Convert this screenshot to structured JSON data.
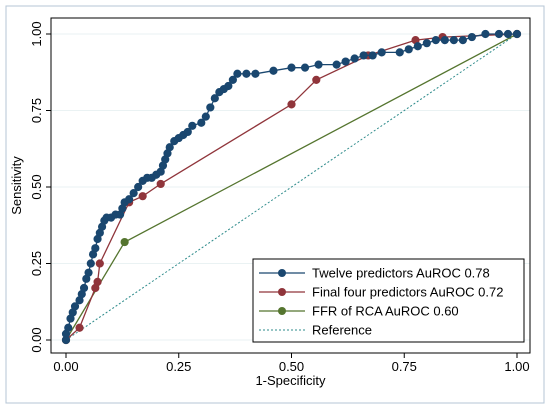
{
  "chart_data": {
    "type": "line",
    "title": "",
    "xlabel": "1-Specificity",
    "ylabel": "Sensitivity",
    "xlim": [
      0,
      1
    ],
    "ylim": [
      0,
      1
    ],
    "x_ticks": [
      "0.00",
      "0.25",
      "0.50",
      "0.75",
      "1.00"
    ],
    "y_ticks": [
      "0.00",
      "0.25",
      "0.50",
      "0.75",
      "1.00"
    ],
    "grid": "y-major",
    "legend_position": "bottom-right-inside",
    "series": [
      {
        "name": "Twelve predictors AuROC 0.78",
        "color": "#1a476f",
        "marker": "circle",
        "points": [
          [
            0,
            0
          ],
          [
            0,
            0.02
          ],
          [
            0.005,
            0.04
          ],
          [
            0.01,
            0.07
          ],
          [
            0.015,
            0.09
          ],
          [
            0.02,
            0.11
          ],
          [
            0.03,
            0.13
          ],
          [
            0.035,
            0.15
          ],
          [
            0.04,
            0.17
          ],
          [
            0.045,
            0.2
          ],
          [
            0.05,
            0.22
          ],
          [
            0.055,
            0.25
          ],
          [
            0.06,
            0.28
          ],
          [
            0.065,
            0.3
          ],
          [
            0.07,
            0.33
          ],
          [
            0.075,
            0.35
          ],
          [
            0.08,
            0.37
          ],
          [
            0.085,
            0.39
          ],
          [
            0.09,
            0.4
          ],
          [
            0.1,
            0.4
          ],
          [
            0.11,
            0.41
          ],
          [
            0.12,
            0.41
          ],
          [
            0.125,
            0.43
          ],
          [
            0.13,
            0.45
          ],
          [
            0.14,
            0.46
          ],
          [
            0.15,
            0.48
          ],
          [
            0.16,
            0.5
          ],
          [
            0.17,
            0.52
          ],
          [
            0.18,
            0.53
          ],
          [
            0.19,
            0.53
          ],
          [
            0.2,
            0.54
          ],
          [
            0.21,
            0.55
          ],
          [
            0.215,
            0.57
          ],
          [
            0.22,
            0.59
          ],
          [
            0.225,
            0.61
          ],
          [
            0.23,
            0.63
          ],
          [
            0.24,
            0.65
          ],
          [
            0.25,
            0.66
          ],
          [
            0.26,
            0.67
          ],
          [
            0.27,
            0.68
          ],
          [
            0.28,
            0.7
          ],
          [
            0.3,
            0.71
          ],
          [
            0.31,
            0.73
          ],
          [
            0.32,
            0.76
          ],
          [
            0.33,
            0.79
          ],
          [
            0.34,
            0.81
          ],
          [
            0.35,
            0.82
          ],
          [
            0.36,
            0.83
          ],
          [
            0.37,
            0.85
          ],
          [
            0.38,
            0.87
          ],
          [
            0.4,
            0.87
          ],
          [
            0.42,
            0.87
          ],
          [
            0.46,
            0.88
          ],
          [
            0.5,
            0.89
          ],
          [
            0.53,
            0.89
          ],
          [
            0.56,
            0.9
          ],
          [
            0.6,
            0.9
          ],
          [
            0.62,
            0.91
          ],
          [
            0.64,
            0.92
          ],
          [
            0.66,
            0.93
          ],
          [
            0.68,
            0.93
          ],
          [
            0.7,
            0.94
          ],
          [
            0.74,
            0.94
          ],
          [
            0.76,
            0.95
          ],
          [
            0.78,
            0.96
          ],
          [
            0.8,
            0.97
          ],
          [
            0.82,
            0.98
          ],
          [
            0.84,
            0.98
          ],
          [
            0.86,
            0.98
          ],
          [
            0.88,
            0.98
          ],
          [
            0.9,
            0.99
          ],
          [
            0.93,
            1.0
          ],
          [
            0.96,
            1.0
          ],
          [
            0.98,
            1.0
          ],
          [
            1.0,
            1.0
          ]
        ]
      },
      {
        "name": "Final four predictors AuROC 0.72",
        "color": "#90353b",
        "marker": "circle",
        "points": [
          [
            0,
            0
          ],
          [
            0.03,
            0.04
          ],
          [
            0.065,
            0.17
          ],
          [
            0.07,
            0.19
          ],
          [
            0.075,
            0.25
          ],
          [
            0.14,
            0.45
          ],
          [
            0.17,
            0.47
          ],
          [
            0.21,
            0.51
          ],
          [
            0.5,
            0.77
          ],
          [
            0.555,
            0.85
          ],
          [
            0.67,
            0.93
          ],
          [
            0.775,
            0.98
          ],
          [
            0.835,
            0.99
          ],
          [
            1.0,
            1.0
          ]
        ]
      },
      {
        "name": "FFR of RCA AuROC 0.60",
        "color": "#55752f",
        "marker": "circle",
        "points": [
          [
            0,
            0
          ],
          [
            0.13,
            0.32
          ],
          [
            1.0,
            1.0
          ]
        ]
      },
      {
        "name": "Reference",
        "color": "#2e8b8b",
        "marker": "none",
        "style": "dotted",
        "points": [
          [
            0,
            0
          ],
          [
            1,
            1
          ]
        ]
      }
    ]
  }
}
